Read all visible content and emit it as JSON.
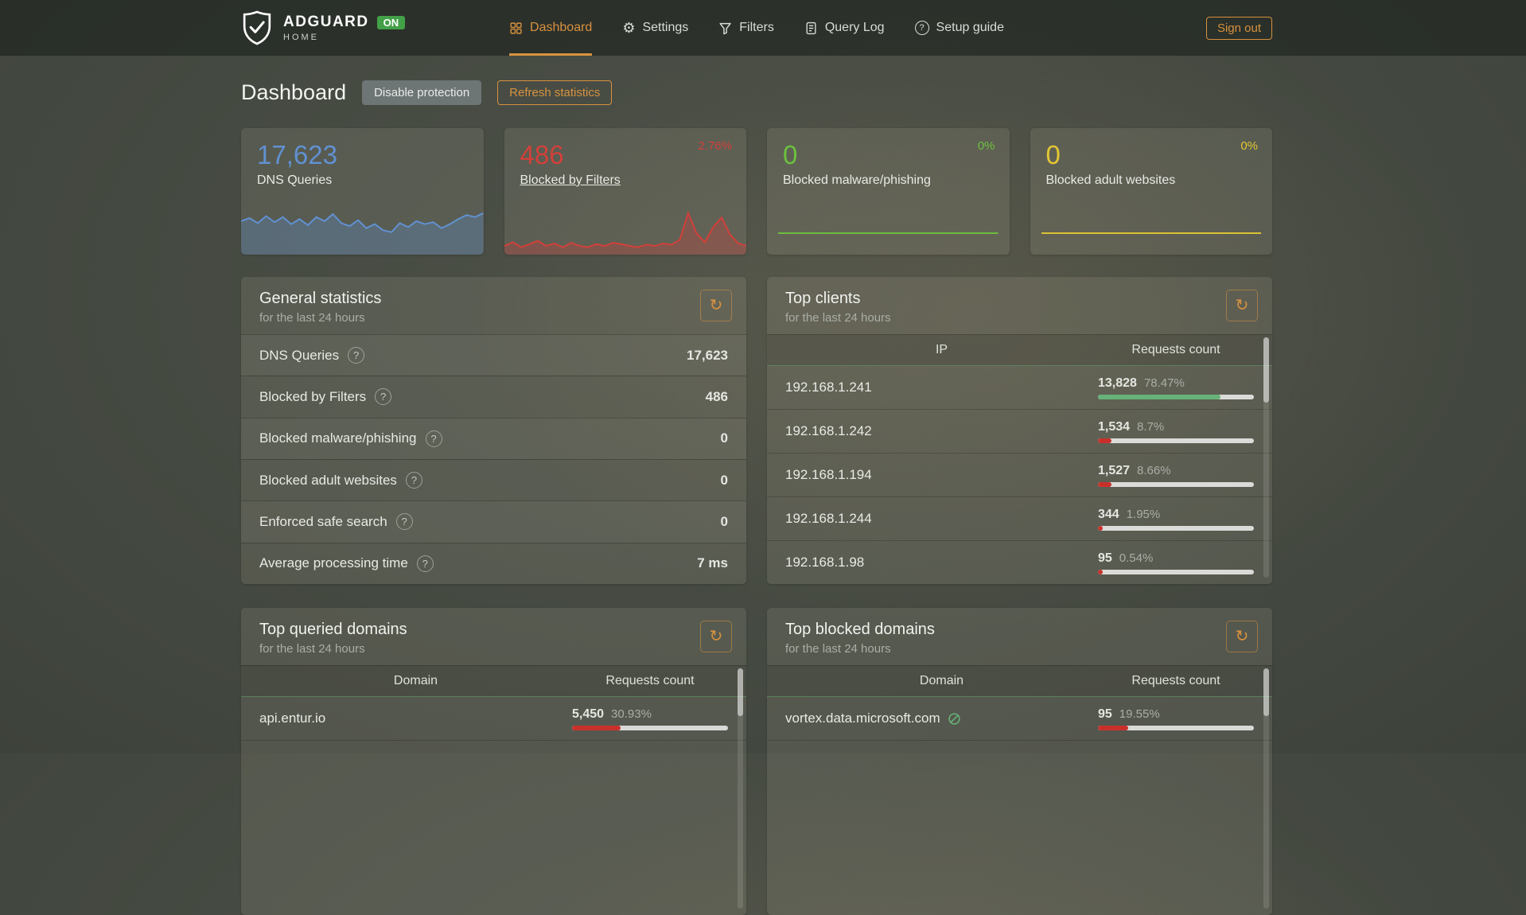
{
  "nav": {
    "brand": {
      "name": "ADGUARD",
      "sub": "HOME",
      "status": "ON"
    },
    "items": [
      {
        "label": "Dashboard"
      },
      {
        "label": "Settings"
      },
      {
        "label": "Filters"
      },
      {
        "label": "Query Log"
      },
      {
        "label": "Setup guide"
      }
    ],
    "sign_out": "Sign out"
  },
  "icons": {
    "help": "?",
    "refresh": "↻",
    "gear": "⚙"
  },
  "colors": {
    "accent_orange": "#d8923f",
    "badge_green": "#43a047",
    "bar_green": "#67b279",
    "bar_red": "#c9302c"
  },
  "page": {
    "title": "Dashboard",
    "disable_protection": "Disable protection",
    "refresh_statistics": "Refresh statistics"
  },
  "stat_cards": [
    {
      "value": "17,623",
      "label": "DNS Queries",
      "trend": "",
      "color": "#6191d2"
    },
    {
      "value": "486",
      "label": "Blocked by Filters",
      "trend": "2.76%",
      "color": "#d2403a"
    },
    {
      "value": "0",
      "label": "Blocked malware/phishing",
      "trend": "0%",
      "color": "#6cc13e"
    },
    {
      "value": "0",
      "label": "Blocked adult websites",
      "trend": "0%",
      "color": "#e3c832"
    }
  ],
  "sparklines": {
    "dns": {
      "color": "#6191d2",
      "stroke": 2,
      "values": [
        62,
        68,
        58,
        72,
        60,
        70,
        56,
        66,
        54,
        70,
        62,
        76,
        58,
        52,
        64,
        48,
        56,
        44,
        40,
        58,
        50,
        62,
        56,
        60,
        48,
        56,
        66,
        74,
        70,
        78
      ]
    },
    "blocked": {
      "color": "#d2403a",
      "stroke": 2,
      "values": [
        10,
        16,
        8,
        13,
        18,
        10,
        14,
        8,
        15,
        10,
        8,
        13,
        10,
        15,
        13,
        10,
        8,
        12,
        10,
        14,
        12,
        20,
        62,
        30,
        16,
        40,
        55,
        28,
        14,
        10
      ]
    },
    "malware": {
      "color": "#6cc13e",
      "stroke": 3,
      "values": [
        0,
        0
      ]
    },
    "adult": {
      "color": "#e3c832",
      "stroke": 3,
      "values": [
        0,
        0
      ]
    }
  },
  "general": {
    "title": "General statistics",
    "subtitle": "for the last 24 hours",
    "rows": [
      {
        "label": "DNS Queries",
        "value": "17,623"
      },
      {
        "label": "Blocked by Filters",
        "value": "486"
      },
      {
        "label": "Blocked malware/phishing",
        "value": "0"
      },
      {
        "label": "Blocked adult websites",
        "value": "0"
      },
      {
        "label": "Enforced safe search",
        "value": "0"
      },
      {
        "label": "Average processing time",
        "value": "7 ms"
      }
    ]
  },
  "top_clients": {
    "title": "Top clients",
    "subtitle": "for the last 24 hours",
    "columns": [
      "IP",
      "Requests count"
    ],
    "rows": [
      {
        "ip": "192.168.1.241",
        "count": "13,828",
        "percent": "78.47%",
        "bar": 78.47,
        "bar_color": "#67b279"
      },
      {
        "ip": "192.168.1.242",
        "count": "1,534",
        "percent": "8.7%",
        "bar": 8.7,
        "bar_color": "#c9302c"
      },
      {
        "ip": "192.168.1.194",
        "count": "1,527",
        "percent": "8.66%",
        "bar": 8.66,
        "bar_color": "#c9302c"
      },
      {
        "ip": "192.168.1.244",
        "count": "344",
        "percent": "1.95%",
        "bar": 1.95,
        "bar_color": "#c9302c"
      },
      {
        "ip": "192.168.1.98",
        "count": "95",
        "percent": "0.54%",
        "bar": 0.54,
        "bar_color": "#c9302c"
      }
    ]
  },
  "top_queried": {
    "title": "Top queried domains",
    "subtitle": "for the last 24 hours",
    "columns": [
      "Domain",
      "Requests count"
    ],
    "rows": [
      {
        "domain": "api.entur.io",
        "count": "5,450",
        "percent": "30.93%",
        "bar": 30.93,
        "bar_color": "#c9302c"
      }
    ]
  },
  "top_blocked": {
    "title": "Top blocked domains",
    "subtitle": "for the last 24 hours",
    "columns": [
      "Domain",
      "Requests count"
    ],
    "rows": [
      {
        "domain": "vortex.data.microsoft.com",
        "count": "95",
        "percent": "19.55%",
        "bar": 19.55,
        "bar_color": "#c9302c"
      }
    ]
  }
}
